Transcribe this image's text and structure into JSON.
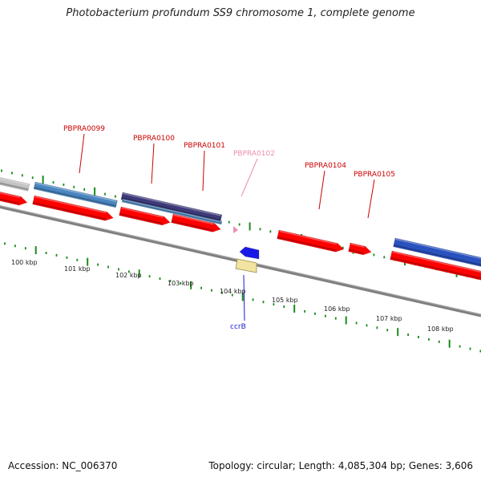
{
  "title": "Photobacterium profundum SS9 chromosome 1, complete genome",
  "footer": {
    "accession": "Accession: NC_006370",
    "stats": "Topology: circular; Length: 4,085,304 bp; Genes: 3,606"
  },
  "colors": {
    "cds": "#ff0000",
    "blue": "#2a52be",
    "steel": "#4a86c0",
    "navy": "#3e3a7a",
    "gray": "#c4c4c4",
    "yellow": "#f2e3a0",
    "tick": "#1a8a1a",
    "backbone": "#808080",
    "label_red": "#cc0000",
    "label_pink": "#e88fb0",
    "label_blue": "#1a1acc"
  },
  "scale_labels": [
    "100 kbp",
    "101 kbp",
    "102 kbp",
    "103 kbp",
    "104 kbp",
    "105 kbp",
    "106 kbp",
    "107 kbp",
    "108 kbp"
  ],
  "gene_labels": [
    {
      "text": "PBPRA0099",
      "color": "label_red"
    },
    {
      "text": "PBPRA0100",
      "color": "label_red"
    },
    {
      "text": "PBPRA0101",
      "color": "label_red"
    },
    {
      "text": "PBPRA0102",
      "color": "label_pink"
    },
    {
      "text": "PBPRA0104",
      "color": "label_red"
    },
    {
      "text": "PBPRA0105",
      "color": "label_red"
    },
    {
      "text": "ccrB",
      "color": "label_blue"
    }
  ]
}
